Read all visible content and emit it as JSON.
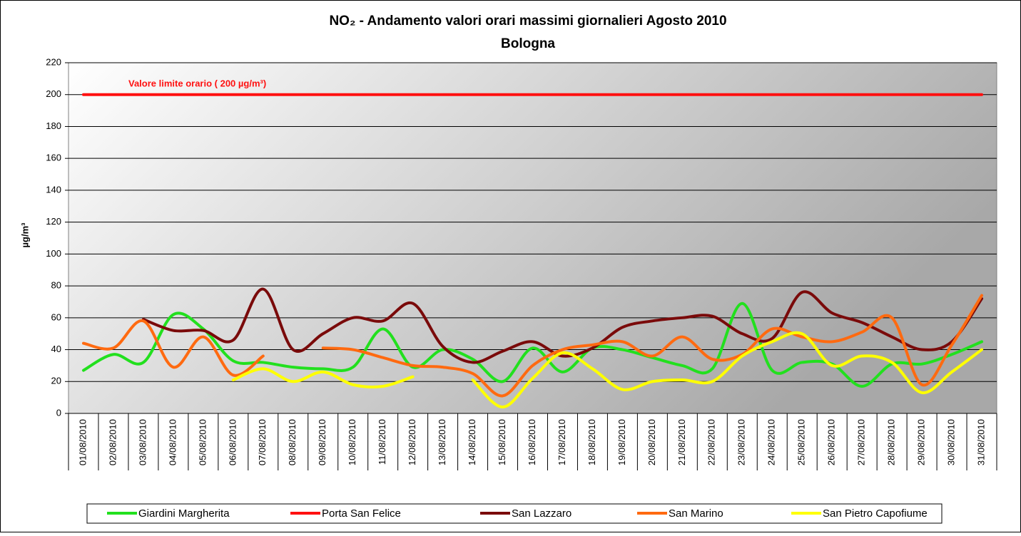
{
  "chart_data": {
    "type": "line",
    "title": "NO₂ - Andamento valori orari massimi giornalieri Agosto 2010",
    "subtitle": "Bologna",
    "y_label": "µg/m³",
    "annotation": "Valore limite orario ( 200 µg/m³)",
    "categories": [
      "01/08/2010",
      "02/08/2010",
      "03/08/2010",
      "04/08/2010",
      "05/08/2010",
      "06/08/2010",
      "07/08/2010",
      "08/08/2010",
      "09/08/2010",
      "10/08/2010",
      "11/08/2010",
      "12/08/2010",
      "13/08/2010",
      "14/08/2010",
      "15/08/2010",
      "16/08/2010",
      "17/08/2010",
      "18/08/2010",
      "19/08/2010",
      "20/08/2010",
      "21/08/2010",
      "22/08/2010",
      "23/08/2010",
      "24/08/2010",
      "25/08/2010",
      "26/08/2010",
      "27/08/2010",
      "28/08/2010",
      "29/08/2010",
      "30/08/2010",
      "31/08/2010"
    ],
    "series": [
      {
        "name": "Giardini Margherita",
        "color": "#22e01e",
        "values": [
          27,
          37,
          32,
          62,
          53,
          33,
          32,
          29,
          28,
          29,
          53,
          29,
          40,
          34,
          20,
          41,
          26,
          41,
          40,
          35,
          30,
          28,
          69,
          27,
          32,
          31,
          17,
          31,
          31,
          37,
          45
        ]
      },
      {
        "name": "Porta San Felice",
        "color": "#ff1010",
        "values": [
          200,
          200,
          200,
          200,
          200,
          200,
          200,
          200,
          200,
          200,
          200,
          200,
          200,
          200,
          200,
          200,
          200,
          200,
          200,
          200,
          200,
          200,
          200,
          200,
          200,
          200,
          200,
          200,
          200,
          200,
          200
        ]
      },
      {
        "name": "San Lazzaro",
        "color": "#7a0a0a",
        "values": [
          null,
          null,
          59,
          52,
          52,
          46,
          78,
          40,
          50,
          60,
          58,
          69,
          42,
          32,
          39,
          45,
          36,
          41,
          54,
          58,
          60,
          61,
          50,
          47,
          76,
          63,
          57,
          48,
          40,
          45,
          72
        ]
      },
      {
        "name": "San Marino",
        "color": "#ff6a10",
        "values": [
          44,
          41,
          58,
          29,
          48,
          24,
          36,
          null,
          41,
          40,
          35,
          30,
          29,
          25,
          11,
          30,
          40,
          43,
          45,
          36,
          48,
          34,
          37,
          53,
          48,
          45,
          51,
          60,
          18,
          43,
          74
        ]
      },
      {
        "name": "San Pietro Capofiume",
        "color": "#ffff00",
        "values": [
          null,
          null,
          null,
          null,
          null,
          21,
          28,
          20,
          26,
          18,
          17,
          23,
          null,
          21,
          4,
          22,
          38,
          28,
          15,
          20,
          21,
          20,
          36,
          45,
          50,
          30,
          36,
          32,
          13,
          26,
          40
        ]
      }
    ],
    "ylim": [
      0,
      220
    ],
    "yticks": [
      0,
      20,
      40,
      60,
      80,
      100,
      120,
      140,
      160,
      180,
      200,
      220
    ],
    "grid": true
  }
}
